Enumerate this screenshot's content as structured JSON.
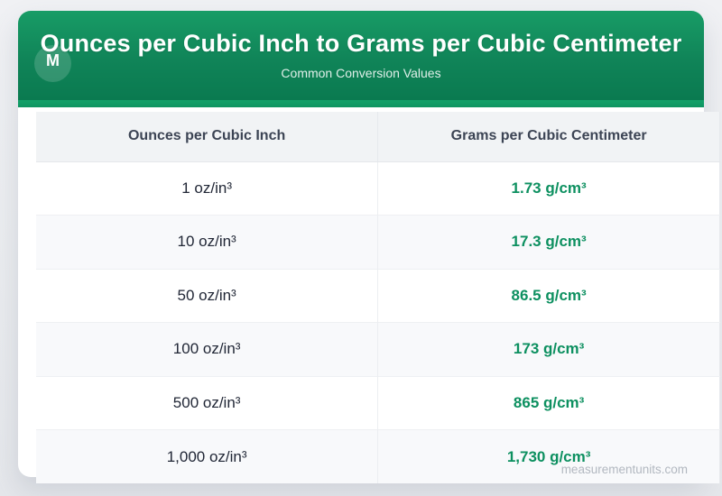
{
  "header": {
    "logo_letter": "M",
    "title": "Ounces per Cubic Inch to Grams per Cubic Centimeter",
    "subtitle": "Common Conversion Values"
  },
  "table": {
    "columns": [
      "Ounces per Cubic Inch",
      "Grams per Cubic Centimeter"
    ],
    "rows": [
      {
        "from": "1 oz/in³",
        "to": "1.73 g/cm³"
      },
      {
        "from": "10 oz/in³",
        "to": "17.3 g/cm³"
      },
      {
        "from": "50 oz/in³",
        "to": "86.5 g/cm³"
      },
      {
        "from": "100 oz/in³",
        "to": "173 g/cm³"
      },
      {
        "from": "500 oz/in³",
        "to": "865 g/cm³"
      },
      {
        "from": "1,000 oz/in³",
        "to": "1,730 g/cm³"
      }
    ]
  },
  "footer": {
    "watermark": "measurementunits.com"
  },
  "colors": {
    "banner_green_top": "#189c66",
    "banner_green_bottom": "#0a7a50",
    "banner_accent_green": "#13a169",
    "value_green": "#0d9060",
    "table_header_bg": "#f1f3f5",
    "row_alt_bg": "#f8f9fb",
    "header_text": "#3c4454",
    "cell_text": "#212736",
    "watermark_gray": "#b2b8c0",
    "page_bg": "#eaecef"
  },
  "chart_data": {
    "type": "table",
    "title": "Ounces per Cubic Inch to Grams per Cubic Centimeter",
    "subtitle": "Common Conversion Values",
    "columns": [
      "Ounces per Cubic Inch",
      "Grams per Cubic Centimeter"
    ],
    "rows": [
      [
        "1 oz/in³",
        "1.73 g/cm³"
      ],
      [
        "10 oz/in³",
        "17.3 g/cm³"
      ],
      [
        "50 oz/in³",
        "86.5 g/cm³"
      ],
      [
        "100 oz/in³",
        "173 g/cm³"
      ],
      [
        "500 oz/in³",
        "865 g/cm³"
      ],
      [
        "1,000 oz/in³",
        "1,730 g/cm³"
      ]
    ],
    "oz_per_in3": [
      1,
      10,
      50,
      100,
      500,
      1000
    ],
    "g_per_cm3": [
      1.73,
      17.3,
      86.5,
      173,
      865,
      1730
    ],
    "conversion_factor": 1.73
  }
}
